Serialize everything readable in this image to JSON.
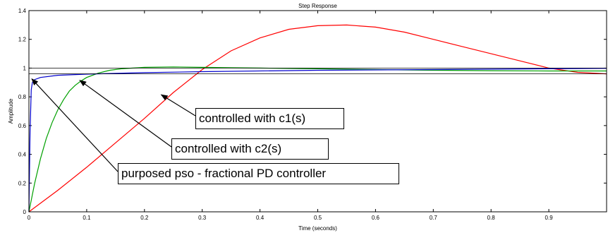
{
  "chart_data": {
    "type": "line",
    "title": "Step Response",
    "xlabel": "Time (seconds)",
    "ylabel": "Amplitude",
    "xlim": [
      0,
      1
    ],
    "ylim": [
      0,
      1.4
    ],
    "grid": false,
    "x_ticks": [
      "0",
      "0.1",
      "0.2",
      "0.3",
      "0.4",
      "0.5",
      "0.6",
      "0.7",
      "0.8",
      "0.9"
    ],
    "y_ticks": [
      "0",
      "0.2",
      "0.4",
      "0.6",
      "0.8",
      "1",
      "1.2",
      "1.4"
    ],
    "series": [
      {
        "color": "#ff0000",
        "x": [
          0,
          0.05,
          0.1,
          0.15,
          0.2,
          0.25,
          0.3,
          0.35,
          0.4,
          0.45,
          0.5,
          0.55,
          0.6,
          0.65,
          0.7,
          0.75,
          0.8,
          0.85,
          0.9,
          0.95,
          1.0
        ],
        "y": [
          0,
          0.15,
          0.31,
          0.48,
          0.65,
          0.83,
          0.99,
          1.12,
          1.21,
          1.27,
          1.295,
          1.3,
          1.285,
          1.25,
          1.2,
          1.15,
          1.1,
          1.05,
          1.0,
          0.97,
          0.96
        ]
      },
      {
        "color": "#00a000",
        "x": [
          0,
          0.01,
          0.02,
          0.03,
          0.04,
          0.05,
          0.06,
          0.07,
          0.08,
          0.09,
          0.1,
          0.12,
          0.14,
          0.16,
          0.18,
          0.2,
          0.25,
          0.3,
          0.4,
          0.5,
          0.6,
          0.7,
          0.8,
          0.9,
          1.0
        ],
        "y": [
          0,
          0.2,
          0.37,
          0.51,
          0.62,
          0.71,
          0.78,
          0.84,
          0.88,
          0.91,
          0.935,
          0.965,
          0.985,
          0.995,
          1.0,
          1.005,
          1.008,
          1.005,
          1.0,
          0.995,
          0.99,
          0.985,
          0.982,
          0.98,
          0.98
        ]
      },
      {
        "color": "#0000cc",
        "x": [
          0,
          0.002,
          0.004,
          0.006,
          0.008,
          0.01,
          0.02,
          0.05,
          0.1,
          0.2,
          0.3,
          0.5,
          0.7,
          0.9,
          1.0
        ],
        "y": [
          0,
          0.55,
          0.85,
          0.9,
          0.91,
          0.92,
          0.935,
          0.95,
          0.958,
          0.968,
          0.975,
          0.985,
          0.99,
          0.995,
          0.998
        ]
      },
      {
        "color": "#000000",
        "x": [
          0,
          1
        ],
        "y": [
          0.96,
          0.96
        ]
      },
      {
        "color": "#000000",
        "x": [
          0,
          1
        ],
        "y": [
          1.0,
          1.0
        ]
      }
    ],
    "annotations": [
      {
        "text": "controlled with c1(s)",
        "x": 0.229,
        "y": 0.815
      },
      {
        "text": "controlled with c2(s)",
        "x": 0.088,
        "y": 0.915
      },
      {
        "text": "purposed pso - fractional PD controller",
        "x": 0.005,
        "y": 0.925
      }
    ]
  }
}
